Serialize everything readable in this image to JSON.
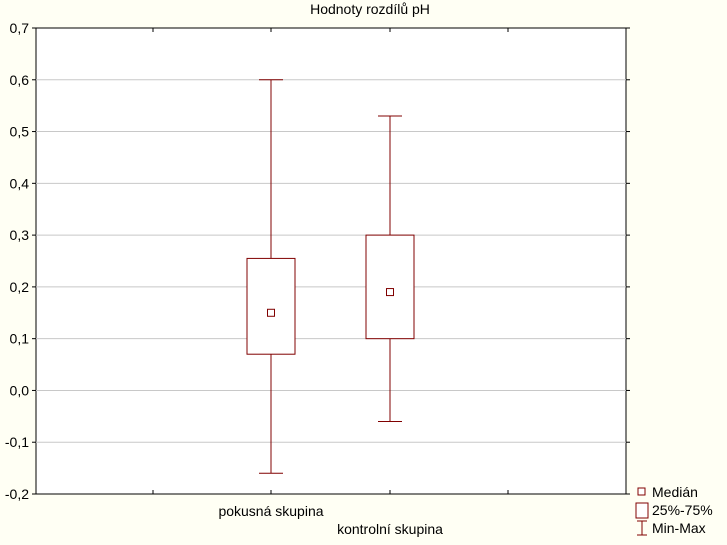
{
  "chart_data": {
    "type": "boxplot",
    "title": "Hodnoty rozdílů pH",
    "xlabel": "",
    "ylabel": "",
    "ylim": [
      -0.2,
      0.7
    ],
    "yticks": [
      -0.2,
      -0.1,
      0.0,
      0.1,
      0.2,
      0.3,
      0.4,
      0.5,
      0.6,
      0.7
    ],
    "ytick_labels": [
      "-0,2",
      "-0,1",
      "0,0",
      "0,1",
      "0,2",
      "0,3",
      "0,4",
      "0,5",
      "0,6",
      "0,7"
    ],
    "grid": true,
    "legend_position": "bottom-right",
    "colors": {
      "box": "#800000",
      "grid": "#c8c8c8",
      "background": "#fffff4",
      "axis": "#000000"
    },
    "categories": [
      "pokusná skupina",
      "kontrolní skupina"
    ],
    "groups": [
      {
        "label": "pokusná skupina",
        "median": 0.15,
        "q1": 0.07,
        "q3": 0.255,
        "min": -0.16,
        "max": 0.6
      },
      {
        "label": "kontrolní skupina",
        "median": 0.19,
        "q1": 0.1,
        "q3": 0.3,
        "min": -0.06,
        "max": 0.53
      }
    ],
    "legend": [
      {
        "key": "median",
        "label": "Medián"
      },
      {
        "key": "box",
        "label": "25%-75%"
      },
      {
        "key": "whisker",
        "label": "Min-Max"
      }
    ]
  }
}
